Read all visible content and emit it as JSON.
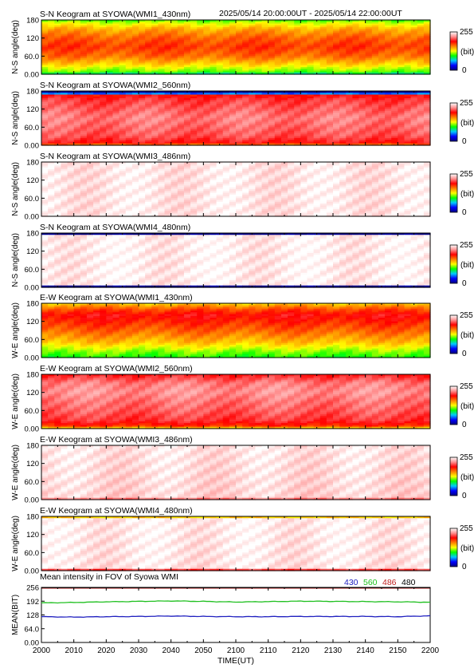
{
  "header": {
    "time_range": "2025/05/14 20:00:00UT - 2025/05/14 22:00:00UT"
  },
  "colorbar": {
    "max_label": "255",
    "unit_label": "(bit)",
    "min_label": "0",
    "stops": [
      "#000080",
      "#0000ff",
      "#00c8ff",
      "#00ff00",
      "#ffff00",
      "#ff8000",
      "#ff0000",
      "#ff9090",
      "#ffffff"
    ]
  },
  "chart_data": [
    {
      "type": "heatmap",
      "title": "S-N Keogram at SYOWA(WMI1_430nm)",
      "ylabel": "N-S angle(deg)",
      "yticks": [
        "0.00",
        "60.0",
        "120",
        "180"
      ],
      "ylim": [
        0,
        180
      ],
      "profile": [
        [
          0,
          0.28
        ],
        [
          8,
          0.42
        ],
        [
          35,
          0.55
        ],
        [
          60,
          0.65
        ],
        [
          90,
          0.7
        ],
        [
          120,
          0.66
        ],
        [
          150,
          0.58
        ],
        [
          170,
          0.48
        ],
        [
          180,
          0.4
        ]
      ]
    },
    {
      "type": "heatmap",
      "title": "S-N Keogram at SYOWA(WMI2_560nm)",
      "ylabel": "N-S angle(deg)",
      "yticks": [
        "0.00",
        "60.0",
        "120",
        "180"
      ],
      "ylim": [
        0,
        180
      ],
      "profile": [
        [
          0,
          0.6
        ],
        [
          8,
          0.76
        ],
        [
          30,
          0.82
        ],
        [
          60,
          0.84
        ],
        [
          90,
          0.86
        ],
        [
          120,
          0.83
        ],
        [
          150,
          0.8
        ],
        [
          168,
          0.74
        ],
        [
          172,
          0.02
        ],
        [
          180,
          0.0
        ]
      ]
    },
    {
      "type": "heatmap",
      "title": "S-N Keogram at SYOWA(WMI3_486nm)",
      "ylabel": "N-S angle(deg)",
      "yticks": [
        "0.00",
        "60.0",
        "120",
        "180"
      ],
      "ylim": [
        0,
        180
      ],
      "profile": [
        [
          0,
          0.97
        ],
        [
          180,
          0.97
        ]
      ]
    },
    {
      "type": "heatmap",
      "title": "S-N Keogram at SYOWA(WMI4_480nm)",
      "ylabel": "N-S angle(deg)",
      "yticks": [
        "0.00",
        "60.0",
        "120",
        "180"
      ],
      "ylim": [
        0,
        180
      ],
      "profile": [
        [
          0,
          0.0
        ],
        [
          4,
          0.02
        ],
        [
          6,
          0.98
        ],
        [
          172,
          0.98
        ],
        [
          174,
          0.02
        ],
        [
          180,
          0.0
        ]
      ]
    },
    {
      "type": "heatmap",
      "title": "E-W Keogram at SYOWA(WMI1_430nm)",
      "ylabel": "W-E angle(deg)",
      "yticks": [
        "0.00",
        "60.0",
        "120",
        "180"
      ],
      "ylim": [
        0,
        180
      ],
      "profile": [
        [
          0,
          0.38
        ],
        [
          20,
          0.44
        ],
        [
          50,
          0.56
        ],
        [
          90,
          0.66
        ],
        [
          120,
          0.72
        ],
        [
          140,
          0.76
        ],
        [
          160,
          0.68
        ],
        [
          175,
          0.58
        ],
        [
          180,
          0.52
        ]
      ]
    },
    {
      "type": "heatmap",
      "title": "E-W Keogram at SYOWA(WMI2_560nm)",
      "ylabel": "W-E angle(deg)",
      "yticks": [
        "0.00",
        "60.0",
        "120",
        "180"
      ],
      "ylim": [
        0,
        180
      ],
      "profile": [
        [
          0,
          0.5
        ],
        [
          8,
          0.7
        ],
        [
          25,
          0.79
        ],
        [
          60,
          0.83
        ],
        [
          90,
          0.85
        ],
        [
          120,
          0.88
        ],
        [
          150,
          0.86
        ],
        [
          170,
          0.8
        ],
        [
          180,
          0.76
        ]
      ]
    },
    {
      "type": "heatmap",
      "title": "E-W Keogram at SYOWA(WMI3_486nm)",
      "ylabel": "W-E angle(deg)",
      "yticks": [
        "0.00",
        "60.0",
        "120",
        "180"
      ],
      "ylim": [
        0,
        180
      ],
      "profile": [
        [
          0,
          0.72
        ],
        [
          5,
          0.95
        ],
        [
          180,
          0.97
        ]
      ]
    },
    {
      "type": "heatmap",
      "title": "E-W Keogram at SYOWA(WMI4_480nm)",
      "ylabel": "W-E angle(deg)",
      "yticks": [
        "0.00",
        "60.0",
        "120",
        "180"
      ],
      "ylim": [
        0,
        180
      ],
      "profile": [
        [
          0,
          0.55
        ],
        [
          5,
          0.97
        ],
        [
          174,
          0.98
        ],
        [
          178,
          0.4
        ],
        [
          180,
          0.35
        ]
      ]
    },
    {
      "type": "line",
      "title": "Mean intensity in FOV of Syowa WMI",
      "ylabel": "MEAN(BIT)",
      "xlabel": "TIME(UT)",
      "yticks": [
        "0.00",
        "64.0",
        "128",
        "192",
        "256"
      ],
      "ylim": [
        0,
        256
      ],
      "x_ticks": [
        "2000",
        "2010",
        "2020",
        "2030",
        "2040",
        "2050",
        "2100",
        "2110",
        "2120",
        "2130",
        "2140",
        "2150",
        "2200"
      ],
      "x_range_minutes": [
        0,
        120
      ],
      "series": [
        {
          "name": "430",
          "color": "#2020c0",
          "values": [
            [
              0,
              120
            ],
            [
              10,
              118
            ],
            [
              20,
              120
            ],
            [
              30,
              121
            ],
            [
              40,
              123
            ],
            [
              50,
              121
            ],
            [
              60,
              120
            ],
            [
              70,
              120
            ],
            [
              80,
              121
            ],
            [
              90,
              121
            ],
            [
              100,
              121
            ],
            [
              110,
              120
            ],
            [
              120,
              124
            ]
          ]
        },
        {
          "name": "560",
          "color": "#20c020",
          "values": [
            [
              0,
              184
            ],
            [
              10,
              186
            ],
            [
              20,
              189
            ],
            [
              30,
              191
            ],
            [
              40,
              193
            ],
            [
              50,
              191
            ],
            [
              60,
              188
            ],
            [
              70,
              190
            ],
            [
              80,
              192
            ],
            [
              90,
              191
            ],
            [
              100,
              190
            ],
            [
              110,
              189
            ],
            [
              120,
              187
            ]
          ]
        },
        {
          "name": "486",
          "color": "#c02020",
          "values": [
            [
              0,
              253
            ],
            [
              120,
              253
            ]
          ]
        },
        {
          "name": "480",
          "color": "#000000",
          "values": [
            [
              0,
              255
            ],
            [
              120,
              255
            ]
          ]
        }
      ]
    }
  ]
}
